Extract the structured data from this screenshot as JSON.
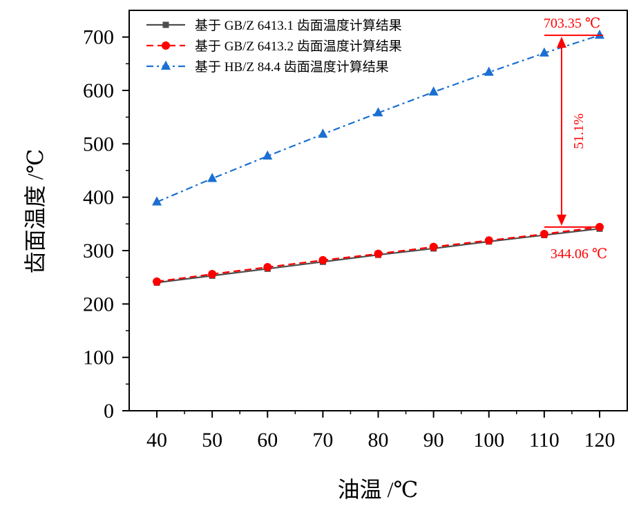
{
  "chart_data": {
    "type": "line",
    "x": [
      40,
      50,
      60,
      70,
      80,
      90,
      100,
      110,
      120
    ],
    "xlabel": "油温 /℃",
    "ylabel": "齿面温度 /℃",
    "xlim": [
      35,
      125
    ],
    "ylim": [
      0,
      750
    ],
    "xticks": [
      40,
      50,
      60,
      70,
      80,
      90,
      100,
      110,
      120
    ],
    "yticks": [
      0,
      100,
      200,
      300,
      400,
      500,
      600,
      700
    ],
    "grid": false,
    "legend_position": "top-left",
    "series": [
      {
        "name": "基于 GB/Z 6413.1 齿面温度计算结果",
        "color": "#4d4d4d",
        "marker": "square",
        "line_style": "solid",
        "values": [
          240,
          253,
          266,
          279,
          292,
          304,
          317,
          329,
          341
        ]
      },
      {
        "name": "基于 GB/Z 6413.2 齿面温度计算结果",
        "color": "#ff0000",
        "marker": "circle",
        "line_style": "dashed",
        "values": [
          242,
          256,
          269,
          282,
          294,
          307,
          319,
          331,
          344.06
        ]
      },
      {
        "name": "基于 HB/Z 84.4 齿面温度计算结果",
        "color": "#1a6fd1",
        "marker": "triangle",
        "line_style": "dash-dot",
        "values": [
          391,
          435,
          477,
          518,
          558,
          597,
          634,
          670,
          703.35
        ]
      }
    ],
    "annotations": {
      "top_value": "703.35 ℃",
      "bottom_value": "344.06 ℃",
      "percent": "51.1%",
      "color": "#ff0000",
      "at_x": 120,
      "top_y": 703.35,
      "bottom_y": 344.06
    }
  }
}
